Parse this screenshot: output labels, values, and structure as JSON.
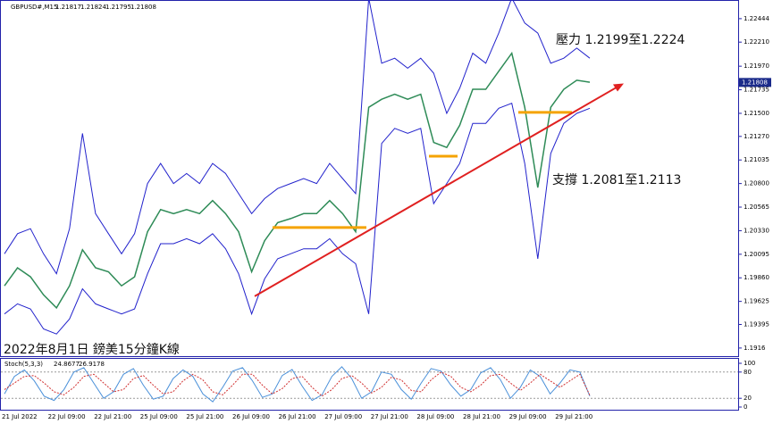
{
  "chart_data": {
    "type": "line",
    "symbol": "GBPUSD#,M15",
    "ohlc": [
      1.21817,
      1.21824,
      1.21795,
      1.21808
    ],
    "caption": "2022年8月1日 鎊美15分鐘K線",
    "resistance_note": "壓力 1.2199至1.2224",
    "support_note": "支撐 1.2081至1.2113",
    "x_labels": [
      "21 Jul 2022",
      "22 Jul 09:00",
      "22 Jul 21:00",
      "25 Jul 09:00",
      "25 Jul 21:00",
      "26 Jul 09:00",
      "26 Jul 21:00",
      "27 Jul 09:00",
      "27 Jul 21:00",
      "28 Jul 09:00",
      "28 Jul 21:00",
      "29 Jul 09:00",
      "29 Jul 21:00"
    ],
    "series": [
      {
        "color": "#2e8b57",
        "values": [
          1.1978,
          1.1996,
          1.1987,
          1.1969,
          1.1956,
          1.1978,
          1.2014,
          1.1996,
          1.1992,
          1.1978,
          1.1987,
          1.2032,
          1.2054,
          1.205,
          1.2054,
          1.205,
          1.2063,
          1.205,
          1.2032,
          1.1992,
          1.2023,
          1.2041,
          1.2045,
          1.205,
          1.205,
          1.2063,
          1.205,
          1.2032,
          1.2156,
          1.2164,
          1.2169,
          1.2164,
          1.2169,
          1.2121,
          1.2116,
          1.2138,
          1.2174,
          1.2174,
          1.2192,
          1.221,
          1.2156,
          1.2076,
          1.2156,
          1.2174,
          1.2183,
          1.2181
        ]
      },
      {
        "color": "#2222cc",
        "values": [
          1.201,
          1.203,
          1.2035,
          1.201,
          1.199,
          1.2035,
          1.213,
          1.205,
          1.203,
          1.201,
          1.203,
          1.208,
          1.21,
          1.208,
          1.209,
          1.208,
          1.21,
          1.209,
          1.207,
          1.205,
          1.2065,
          1.2075,
          1.208,
          1.2085,
          1.208,
          1.21,
          1.2085,
          1.207,
          1.2265,
          1.22,
          1.2205,
          1.2195,
          1.2205,
          1.219,
          1.215,
          1.2175,
          1.221,
          1.22,
          1.223,
          1.2265,
          1.224,
          1.223,
          1.22,
          1.2205,
          1.2215,
          1.2205
        ]
      },
      {
        "color": "#2222cc",
        "values": [
          1.195,
          1.196,
          1.1955,
          1.1935,
          1.193,
          1.1945,
          1.1975,
          1.196,
          1.1955,
          1.195,
          1.1955,
          1.199,
          1.202,
          1.202,
          1.2025,
          1.202,
          1.203,
          1.2015,
          1.199,
          1.195,
          1.1985,
          1.2005,
          1.201,
          1.2015,
          1.2015,
          1.2025,
          1.201,
          1.2,
          1.195,
          1.212,
          1.2135,
          1.213,
          1.2135,
          1.206,
          1.208,
          1.21,
          1.214,
          1.214,
          1.2155,
          1.216,
          1.21,
          1.2005,
          1.211,
          1.214,
          1.215,
          1.2155
        ]
      }
    ],
    "ylim": [
      1.1907,
      1.2263
    ],
    "yticks": [
      1.22444,
      {
        "value": 1.2221,
        "label": "1.22210"
      },
      {
        "value": 1.2197,
        "label": "1.21970"
      },
      1.21735,
      {
        "value": 1.215,
        "label": "1.21500"
      },
      {
        "value": 1.2127,
        "label": "1.21270"
      },
      1.21035,
      {
        "value": 1.208,
        "label": "1.20800"
      },
      1.20565,
      {
        "value": 1.2033,
        "label": "1.20330"
      },
      1.20095,
      {
        "value": 1.1986,
        "label": "1.19860"
      },
      1.19625,
      1.19395,
      1.1916
    ],
    "trendline": {
      "color": "#e02020",
      "values": [
        1.19676,
        1.21785
      ]
    },
    "levels": {
      "color": "#f5a300",
      "values": [
        1.20362,
        1.21073,
        1.2151
      ]
    },
    "stoch": {
      "label": "Stoch(5,3,3)",
      "ylim": [
        0,
        100
      ],
      "yticks": [
        100,
        80,
        20,
        0
      ],
      "series": [
        {
          "color": "#4a90d9",
          "values": [
            30,
            70,
            85,
            60,
            25,
            15,
            40,
            80,
            90,
            55,
            20,
            35,
            75,
            88,
            50,
            18,
            25,
            65,
            85,
            70,
            30,
            12,
            45,
            82,
            90,
            60,
            22,
            30,
            72,
            86,
            48,
            15,
            28,
            70,
            92,
            65,
            20,
            35,
            80,
            75,
            40,
            18,
            55,
            88,
            82,
            50,
            25,
            40,
            78,
            90,
            62,
            20,
            45,
            85,
            70,
            30,
            55,
            85,
            80,
            24.8677
          ]
        },
        {
          "color": "#d03030",
          "values": [
            40,
            55,
            70,
            72,
            55,
            35,
            28,
            45,
            70,
            75,
            55,
            35,
            40,
            65,
            72,
            50,
            30,
            35,
            60,
            75,
            62,
            35,
            28,
            50,
            75,
            75,
            50,
            30,
            42,
            65,
            70,
            45,
            25,
            40,
            65,
            72,
            55,
            32,
            45,
            68,
            62,
            38,
            35,
            62,
            80,
            70,
            45,
            35,
            50,
            72,
            75,
            55,
            38,
            55,
            75,
            60,
            45,
            60,
            75,
            26.9178
          ]
        }
      ]
    }
  }
}
